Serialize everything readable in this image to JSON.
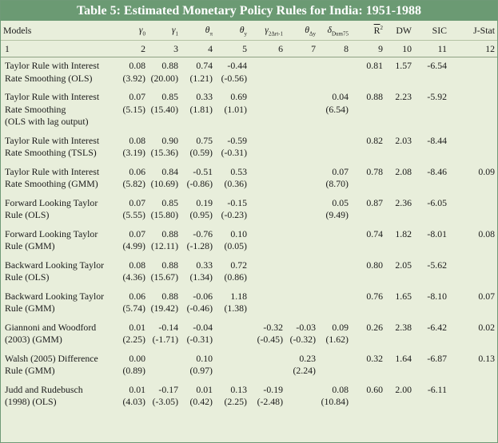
{
  "title": "Table 5: Estimated Monetary Policy Rules for India: 1951-1988",
  "headers": {
    "models": "Models",
    "g0": {
      "sym": "γ",
      "sub": "0"
    },
    "g1": {
      "sym": "γ",
      "sub": "1"
    },
    "tpi": {
      "sym": "θ",
      "sub": "π"
    },
    "ty": {
      "sym": "θ",
      "sub": "y"
    },
    "g2": {
      "sym": "γ",
      "sub": "2Δrt-1"
    },
    "tdy": {
      "sym": "θ",
      "sub": "Δy"
    },
    "d75": {
      "sym": "δ",
      "sub": "Dum75"
    },
    "r2": {
      "sym": "R",
      "sup": "2"
    },
    "dw": "DW",
    "sic": "SIC",
    "jstat": "J-Stat"
  },
  "col_numbers": [
    "1",
    "2",
    "3",
    "4",
    "5",
    "6",
    "7",
    "8",
    "9",
    "10",
    "11",
    "12"
  ],
  "rows": [
    {
      "lines": [
        "Taylor Rule with Interest",
        "Rate Smoothing (OLS)"
      ],
      "cells": [
        [
          "0.08",
          "(3.92)"
        ],
        [
          "0.88",
          "(20.00)"
        ],
        [
          "0.74",
          "(1.21)"
        ],
        [
          "-0.44",
          "(-0.56)"
        ],
        [
          "",
          ""
        ],
        [
          "",
          ""
        ],
        [
          "",
          ""
        ],
        [
          "0.81",
          ""
        ],
        [
          "1.57",
          ""
        ],
        [
          "-6.54",
          ""
        ],
        [
          "",
          ""
        ]
      ]
    },
    {
      "lines": [
        "Taylor Rule with Interest",
        "Rate Smoothing",
        "(OLS with lag output)"
      ],
      "cells": [
        [
          "0.07",
          "(5.15)"
        ],
        [
          "0.85",
          "(15.40)"
        ],
        [
          "0.33",
          "(1.81)"
        ],
        [
          "0.69",
          "(1.01)"
        ],
        [
          "",
          ""
        ],
        [
          "",
          ""
        ],
        [
          "0.04",
          "(6.54)"
        ],
        [
          "0.88",
          ""
        ],
        [
          "2.23",
          ""
        ],
        [
          "-5.92",
          ""
        ],
        [
          "",
          ""
        ]
      ]
    },
    {
      "lines": [
        "Taylor Rule with Interest",
        "Rate Smoothing (TSLS)"
      ],
      "cells": [
        [
          "0.08",
          "(3.19)"
        ],
        [
          "0.90",
          "(15.36)"
        ],
        [
          "0.75",
          "(0.59)"
        ],
        [
          "-0.59",
          "(-0.31)"
        ],
        [
          "",
          ""
        ],
        [
          "",
          ""
        ],
        [
          "",
          ""
        ],
        [
          "0.82",
          ""
        ],
        [
          "2.03",
          ""
        ],
        [
          "-8.44",
          ""
        ],
        [
          "",
          ""
        ]
      ]
    },
    {
      "lines": [
        "Taylor Rule with Interest",
        "Rate Smoothing (GMM)"
      ],
      "cells": [
        [
          "0.06",
          "(5.82)"
        ],
        [
          "0.84",
          "(10.69)"
        ],
        [
          "-0.51",
          "(-0.86)"
        ],
        [
          "0.53",
          "(0.36)"
        ],
        [
          "",
          ""
        ],
        [
          "",
          ""
        ],
        [
          "0.07",
          "(8.70)"
        ],
        [
          "0.78",
          ""
        ],
        [
          "2.08",
          ""
        ],
        [
          "-8.46",
          ""
        ],
        [
          "0.09",
          ""
        ]
      ]
    },
    {
      "lines": [
        "Forward Looking Taylor",
        "Rule (OLS)"
      ],
      "cells": [
        [
          "0.07",
          "(5.55)"
        ],
        [
          "0.85",
          "(15.80)"
        ],
        [
          "0.19",
          "(0.95)"
        ],
        [
          "-0.15",
          "(-0.23)"
        ],
        [
          "",
          ""
        ],
        [
          "",
          ""
        ],
        [
          "0.05",
          "(9.49)"
        ],
        [
          "0.87",
          ""
        ],
        [
          "2.36",
          ""
        ],
        [
          "-6.05",
          ""
        ],
        [
          "",
          ""
        ]
      ]
    },
    {
      "lines": [
        "Forward Looking Taylor",
        "Rule (GMM)"
      ],
      "cells": [
        [
          "0.07",
          "(4.99)"
        ],
        [
          "0.88",
          "(12.11)"
        ],
        [
          "-0.76",
          "(-1.28)"
        ],
        [
          "0.10",
          "(0.05)"
        ],
        [
          "",
          ""
        ],
        [
          "",
          ""
        ],
        [
          "",
          ""
        ],
        [
          "0.74",
          ""
        ],
        [
          "1.82",
          ""
        ],
        [
          "-8.01",
          ""
        ],
        [
          "0.08",
          ""
        ]
      ]
    },
    {
      "lines": [
        "Backward Looking Taylor",
        "Rule (OLS)"
      ],
      "cells": [
        [
          "0.08",
          "(4.36)"
        ],
        [
          "0.88",
          "(15.67)"
        ],
        [
          "0.33",
          "(1.34)"
        ],
        [
          "0.72",
          "(0.86)"
        ],
        [
          "",
          ""
        ],
        [
          "",
          ""
        ],
        [
          "",
          ""
        ],
        [
          "0.80",
          ""
        ],
        [
          "2.05",
          ""
        ],
        [
          "-5.62",
          ""
        ],
        [
          "",
          ""
        ]
      ]
    },
    {
      "lines": [
        "Backward Looking Taylor",
        "Rule (GMM)"
      ],
      "cells": [
        [
          "0.06",
          "(5.74)"
        ],
        [
          "0.88",
          "(19.42)"
        ],
        [
          "-0.06",
          "(-0.46)"
        ],
        [
          "1.18",
          "(1.38)"
        ],
        [
          "",
          ""
        ],
        [
          "",
          ""
        ],
        [
          "",
          ""
        ],
        [
          "0.76",
          ""
        ],
        [
          "1.65",
          ""
        ],
        [
          "-8.10",
          ""
        ],
        [
          "0.07",
          ""
        ]
      ]
    },
    {
      "lines": [
        "Giannoni and Woodford",
        "(2003) (GMM)"
      ],
      "cells": [
        [
          "0.01",
          "(2.25)"
        ],
        [
          "-0.14",
          "(-1.71)"
        ],
        [
          "-0.04",
          "(-0.31)"
        ],
        [
          "",
          ""
        ],
        [
          "-0.32",
          "(-0.45)"
        ],
        [
          "-0.03",
          "(-0.32)"
        ],
        [
          "0.09",
          "(1.62)"
        ],
        [
          "0.26",
          ""
        ],
        [
          "2.38",
          ""
        ],
        [
          "-6.42",
          ""
        ],
        [
          "0.02",
          ""
        ]
      ]
    },
    {
      "lines": [
        "Walsh (2005) Difference",
        "Rule (GMM)"
      ],
      "cells": [
        [
          "0.00",
          "(0.89)"
        ],
        [
          "",
          ""
        ],
        [
          "0.10",
          "(0.97)"
        ],
        [
          "",
          ""
        ],
        [
          "",
          ""
        ],
        [
          "0.23",
          "(2.24)"
        ],
        [
          "",
          ""
        ],
        [
          "0.32",
          ""
        ],
        [
          "1.64",
          ""
        ],
        [
          "-6.87",
          ""
        ],
        [
          "0.13",
          ""
        ]
      ]
    },
    {
      "lines": [
        "Judd and Rudebusch",
        "(1998) (OLS)"
      ],
      "cells": [
        [
          "0.01",
          "(4.03)"
        ],
        [
          "-0.17",
          "(-3.05)"
        ],
        [
          "0.01",
          "(0.42)"
        ],
        [
          "0.13",
          "(2.25)"
        ],
        [
          "-0.19",
          "(-2.48)"
        ],
        [
          "",
          ""
        ],
        [
          "0.08",
          "(10.84)"
        ],
        [
          "0.60",
          ""
        ],
        [
          "2.00",
          ""
        ],
        [
          "-6.11",
          ""
        ],
        [
          "",
          ""
        ]
      ]
    }
  ]
}
